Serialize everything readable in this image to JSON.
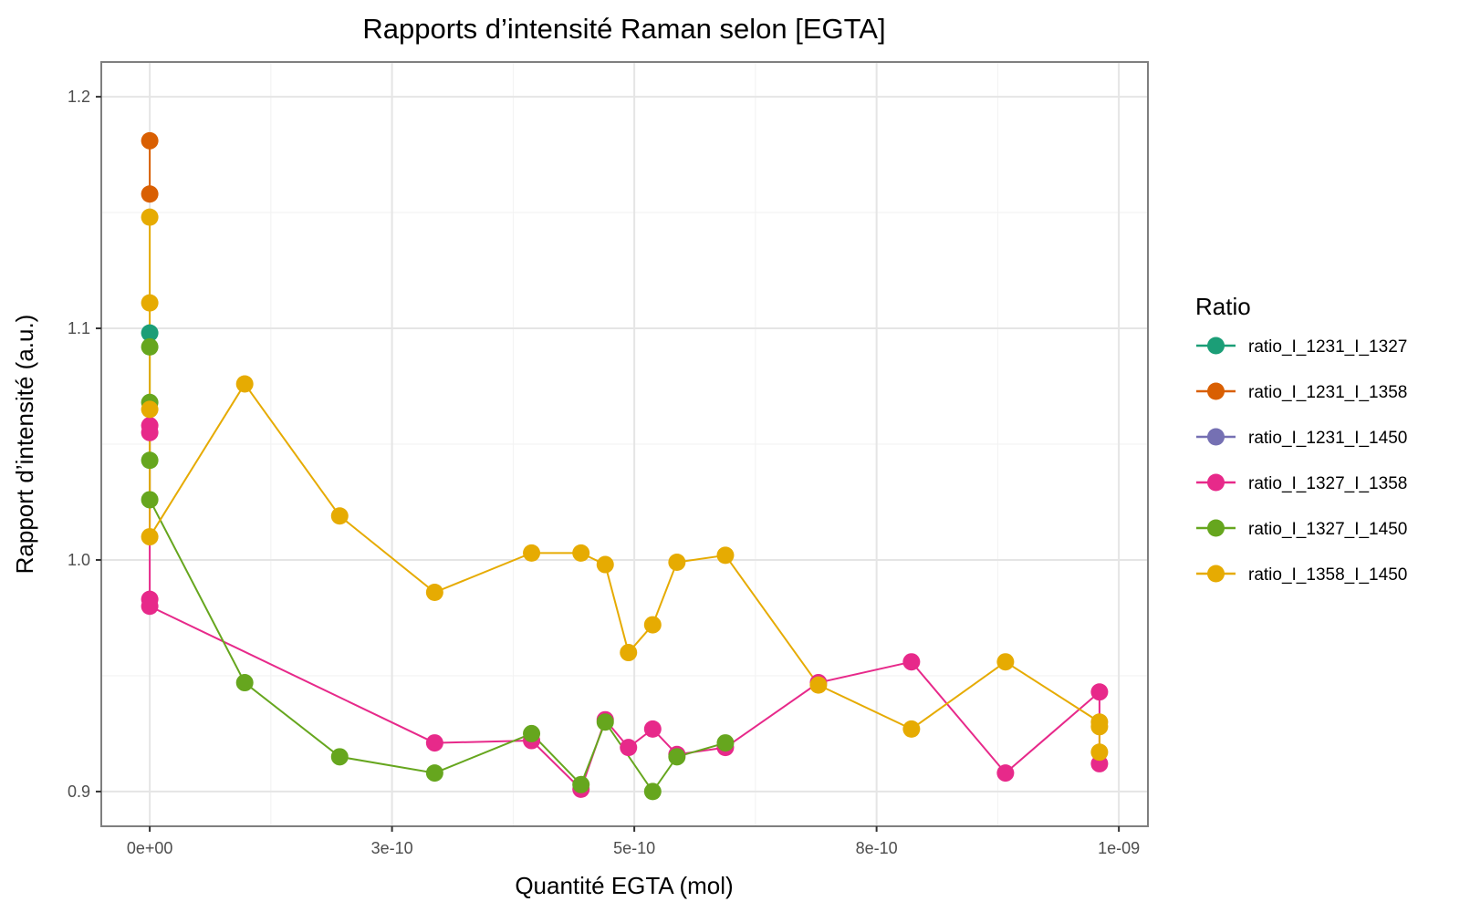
{
  "chart_data": {
    "type": "line",
    "title": "Rapports d’intensité Raman selon [EGTA]",
    "xlabel": "Quantité EGTA (mol)",
    "ylabel": "Rapport d’intensité (a.u.)",
    "xlim": [
      -5e-11,
      1.03e-09
    ],
    "ylim": [
      0.885,
      1.215
    ],
    "x_ticks": [
      {
        "value": 0,
        "label": "0e+00"
      },
      {
        "value": 2.5e-10,
        "label": "3e-10"
      },
      {
        "value": 5e-10,
        "label": "5e-10"
      },
      {
        "value": 7.5e-10,
        "label": "8e-10"
      },
      {
        "value": 1e-09,
        "label": "1e-09"
      }
    ],
    "y_ticks": [
      {
        "value": 0.9,
        "label": "0.9"
      },
      {
        "value": 1.0,
        "label": "1.0"
      },
      {
        "value": 1.1,
        "label": "1.1"
      },
      {
        "value": 1.2,
        "label": "1.2"
      }
    ],
    "grid": true,
    "legend": {
      "title": "Ratio",
      "position": "right"
    },
    "series": [
      {
        "name": "ratio_I_1231_I_1327",
        "color": "#1b9e77",
        "points": [
          [
            0,
            1.098
          ]
        ]
      },
      {
        "name": "ratio_I_1231_I_1358",
        "color": "#d95f02",
        "points": [
          [
            0,
            1.181
          ],
          [
            0,
            1.158
          ]
        ]
      },
      {
        "name": "ratio_I_1231_I_1450",
        "color": "#7570b3",
        "points": []
      },
      {
        "name": "ratio_I_1327_I_1358",
        "color": "#e7298a",
        "points": [
          [
            0,
            1.058
          ],
          [
            0,
            1.055
          ],
          [
            0,
            0.983
          ],
          [
            0,
            0.98
          ],
          [
            2.94e-10,
            0.921
          ],
          [
            3.94e-10,
            0.922
          ],
          [
            4.45e-10,
            0.901
          ],
          [
            4.7e-10,
            0.931
          ],
          [
            4.94e-10,
            0.919
          ],
          [
            5.19e-10,
            0.927
          ],
          [
            5.44e-10,
            0.916
          ],
          [
            5.94e-10,
            0.919
          ],
          [
            6.9e-10,
            0.947
          ],
          [
            7.86e-10,
            0.956
          ],
          [
            8.83e-10,
            0.908
          ],
          [
            9.8e-10,
            0.943
          ],
          [
            9.8e-10,
            0.912
          ]
        ]
      },
      {
        "name": "ratio_I_1327_I_1450",
        "color": "#66a61e",
        "points": [
          [
            0,
            1.092
          ],
          [
            0,
            1.068
          ],
          [
            0,
            1.043
          ],
          [
            0,
            1.026
          ],
          [
            9.8e-11,
            0.947
          ],
          [
            1.96e-10,
            0.915
          ],
          [
            2.94e-10,
            0.908
          ],
          [
            3.94e-10,
            0.925
          ],
          [
            4.45e-10,
            0.903
          ],
          [
            4.7e-10,
            0.93
          ],
          [
            5.19e-10,
            0.9
          ],
          [
            5.44e-10,
            0.915
          ],
          [
            5.94e-10,
            0.921
          ]
        ]
      },
      {
        "name": "ratio_I_1358_I_1450",
        "color": "#e6ab02",
        "points": [
          [
            0,
            1.148
          ],
          [
            0,
            1.111
          ],
          [
            0,
            1.065
          ],
          [
            0,
            1.01
          ],
          [
            9.8e-11,
            1.076
          ],
          [
            1.96e-10,
            1.019
          ],
          [
            2.94e-10,
            0.986
          ],
          [
            3.94e-10,
            1.003
          ],
          [
            4.45e-10,
            1.003
          ],
          [
            4.7e-10,
            0.998
          ],
          [
            4.94e-10,
            0.96
          ],
          [
            5.19e-10,
            0.972
          ],
          [
            5.44e-10,
            0.999
          ],
          [
            5.94e-10,
            1.002
          ],
          [
            6.9e-10,
            0.946
          ],
          [
            7.86e-10,
            0.927
          ],
          [
            8.83e-10,
            0.956
          ],
          [
            9.8e-10,
            0.93
          ],
          [
            9.8e-10,
            0.928
          ],
          [
            9.8e-10,
            0.917
          ]
        ]
      }
    ]
  }
}
